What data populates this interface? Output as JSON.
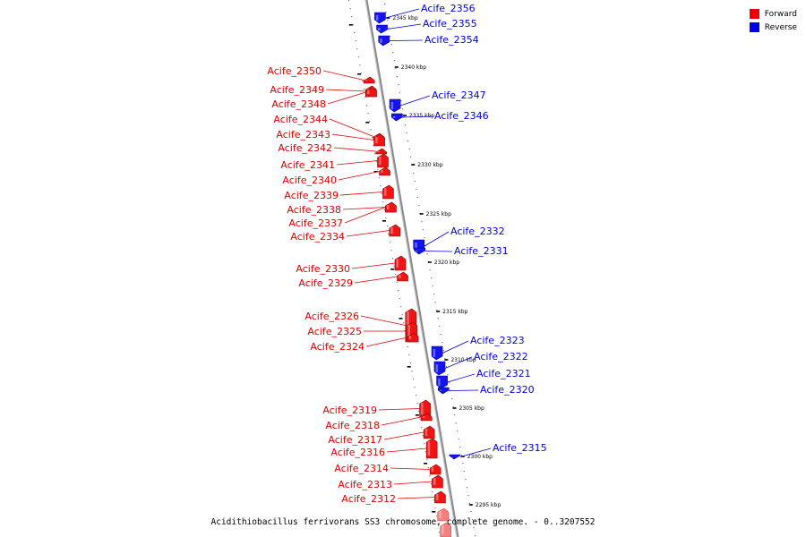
{
  "legend": {
    "forward_label": "Forward",
    "reverse_label": "Reverse",
    "forward_color": "#ee0000",
    "reverse_color": "#0000ee"
  },
  "caption": "Acidithiobacillus ferrivorans SS3 chromosome, complete genome. - 0..3207552",
  "ticks": [
    {
      "label": "2345 kbp"
    },
    {
      "label": "2340 kbp"
    },
    {
      "label": "2335 kbp"
    },
    {
      "label": "2330 kbp"
    },
    {
      "label": "2325 kbp"
    },
    {
      "label": "2320 kbp"
    },
    {
      "label": "2315 kbp"
    },
    {
      "label": "2310 kbp"
    },
    {
      "label": "2305 kbp"
    },
    {
      "label": "2300 kbp"
    },
    {
      "label": "2295 kbp"
    }
  ],
  "genes_reverse": [
    {
      "name": "Acife_2356"
    },
    {
      "name": "Acife_2355"
    },
    {
      "name": "Acife_2354"
    },
    {
      "name": "Acife_2347"
    },
    {
      "name": "Acife_2346"
    },
    {
      "name": "Acife_2332"
    },
    {
      "name": "Acife_2331"
    },
    {
      "name": "Acife_2323"
    },
    {
      "name": "Acife_2322"
    },
    {
      "name": "Acife_2321"
    },
    {
      "name": "Acife_2320"
    },
    {
      "name": "Acife_2315"
    }
  ],
  "genes_forward": [
    {
      "name": "Acife_2350"
    },
    {
      "name": "Acife_2349"
    },
    {
      "name": "Acife_2348"
    },
    {
      "name": "Acife_2344"
    },
    {
      "name": "Acife_2343"
    },
    {
      "name": "Acife_2342"
    },
    {
      "name": "Acife_2341"
    },
    {
      "name": "Acife_2340"
    },
    {
      "name": "Acife_2339"
    },
    {
      "name": "Acife_2338"
    },
    {
      "name": "Acife_2337"
    },
    {
      "name": "Acife_2334"
    },
    {
      "name": "Acife_2330"
    },
    {
      "name": "Acife_2329"
    },
    {
      "name": "Acife_2326"
    },
    {
      "name": "Acife_2325"
    },
    {
      "name": "Acife_2324"
    },
    {
      "name": "Acife_2319"
    },
    {
      "name": "Acife_2318"
    },
    {
      "name": "Acife_2317"
    },
    {
      "name": "Acife_2316"
    },
    {
      "name": "Acife_2314"
    },
    {
      "name": "Acife_2313"
    },
    {
      "name": "Acife_2312"
    }
  ]
}
